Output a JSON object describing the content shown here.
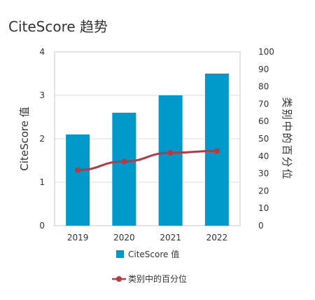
{
  "chart_data": {
    "type": "bar",
    "title": "CiteScore 趋势",
    "categories": [
      "2019",
      "2020",
      "2021",
      "2022"
    ],
    "series": [
      {
        "name": "CiteScore 值",
        "type": "bar",
        "axis": "left",
        "color": "#0099cc",
        "values": [
          2.1,
          2.6,
          3.0,
          3.5
        ]
      },
      {
        "name": "类别中的百分位",
        "type": "line",
        "axis": "right",
        "color": "#b23b45",
        "values": [
          32,
          37,
          42,
          43
        ]
      }
    ],
    "ylabel": "CiteScore 值",
    "ylim": [
      0,
      4
    ],
    "yticks": [
      0,
      1,
      2,
      3,
      4
    ],
    "y2label": "类别中的百分位",
    "y2lim": [
      0,
      100
    ],
    "y2ticks": [
      0,
      10,
      20,
      30,
      40,
      50,
      60,
      70,
      80,
      90,
      100
    ],
    "grid": true,
    "legend_position": "bottom"
  }
}
